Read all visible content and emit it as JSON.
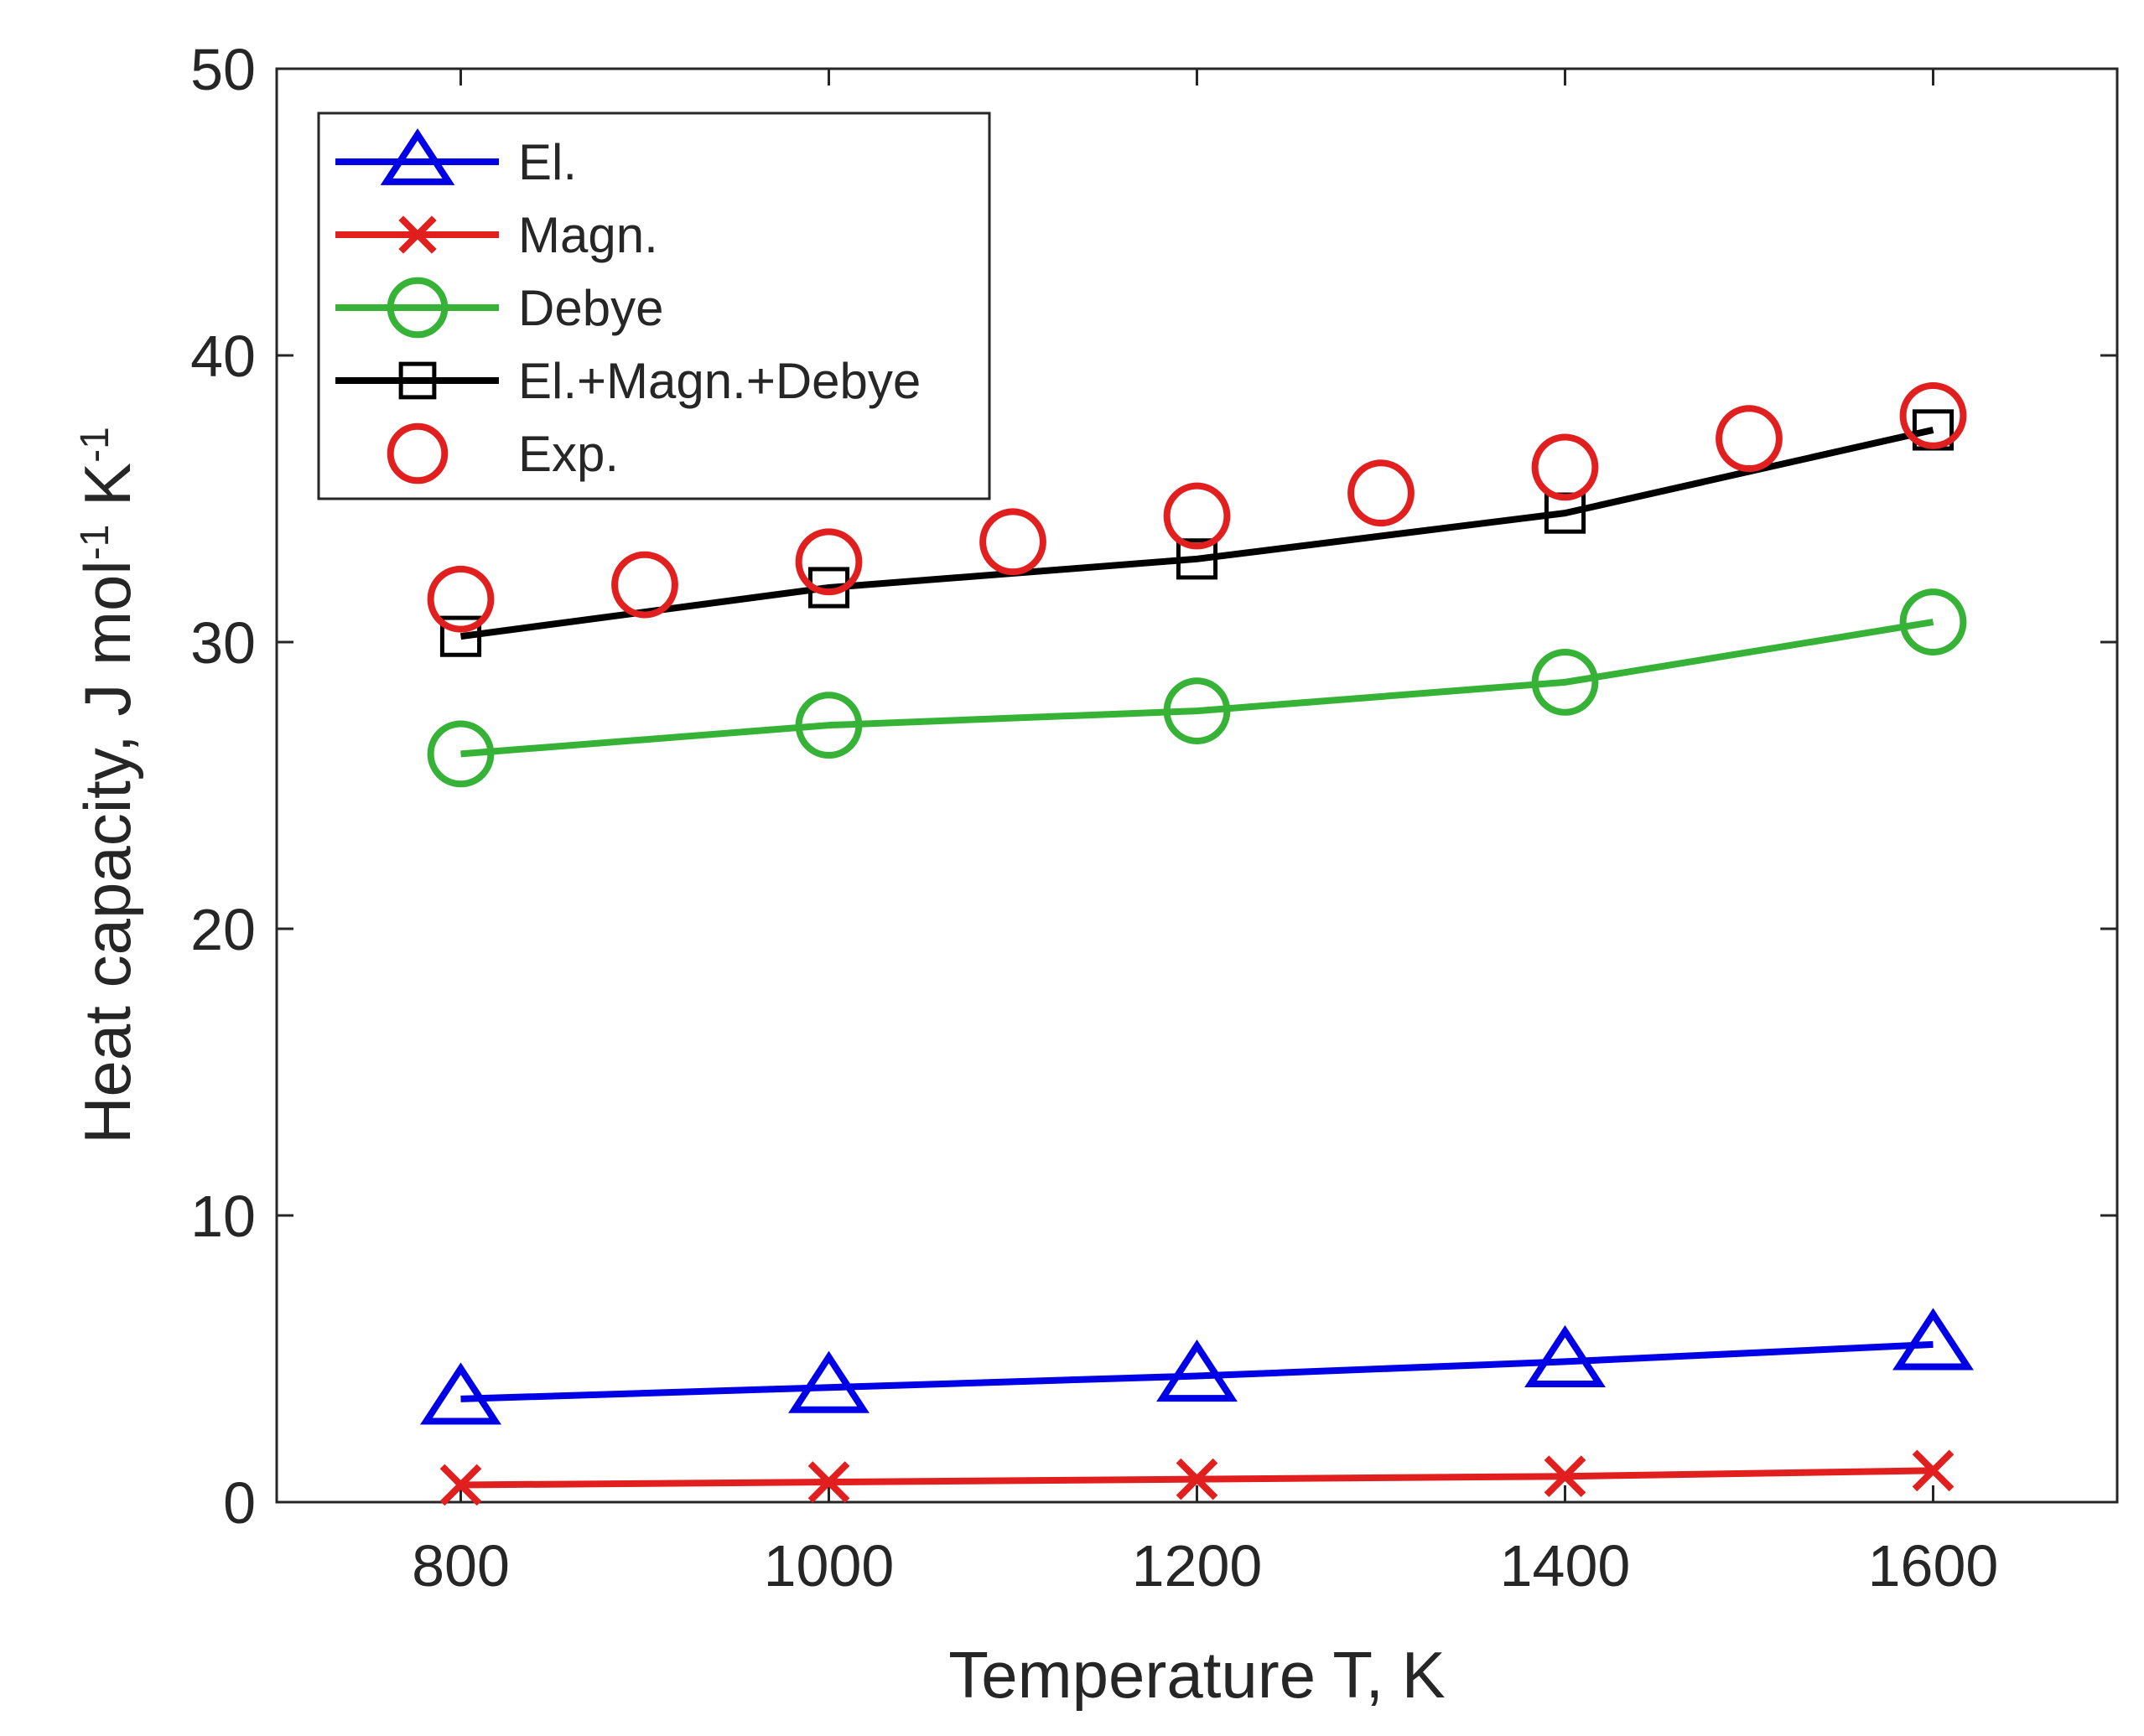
{
  "chart_data": {
    "type": "line",
    "title": "",
    "xlabel": "Temperature T, K",
    "ylabel": {
      "parts": [
        {
          "text": "Heat capacity, J mol",
          "sup": false
        },
        {
          "text": "-1",
          "sup": true
        },
        {
          "text": " K",
          "sup": false
        },
        {
          "text": "-1",
          "sup": true
        }
      ]
    },
    "xlim": [
      700,
      1700
    ],
    "ylim": [
      0,
      50
    ],
    "xticks": [
      800,
      1000,
      1200,
      1400,
      1600
    ],
    "yticks": [
      0,
      10,
      20,
      30,
      40,
      50
    ],
    "grid": false,
    "legend_position": "top-left",
    "series": [
      {
        "name": "El.",
        "color": "#0000e6",
        "marker": "triangle",
        "line": true,
        "x": [
          800,
          1000,
          1200,
          1400,
          1600
        ],
        "y": [
          3.6,
          4.0,
          4.4,
          4.9,
          5.5
        ]
      },
      {
        "name": "Magn.",
        "color": "#e21f1f",
        "marker": "x",
        "line": true,
        "x": [
          800,
          1000,
          1200,
          1400,
          1600
        ],
        "y": [
          0.6,
          0.7,
          0.8,
          0.9,
          1.1
        ]
      },
      {
        "name": "Debye",
        "color": "#36b336",
        "marker": "circle",
        "line": true,
        "x": [
          800,
          1000,
          1200,
          1400,
          1600
        ],
        "y": [
          26.1,
          27.1,
          27.6,
          28.6,
          30.7
        ]
      },
      {
        "name": "El.+Magn.+Debye",
        "color": "#000000",
        "marker": "square",
        "line": true,
        "x": [
          800,
          1000,
          1200,
          1400,
          1600
        ],
        "y": [
          30.2,
          31.9,
          32.9,
          34.5,
          37.4
        ]
      },
      {
        "name": "Exp.",
        "color": "#e21f1f",
        "marker": "circle",
        "line": false,
        "x": [
          800,
          900,
          1000,
          1100,
          1200,
          1300,
          1400,
          1500,
          1600
        ],
        "y": [
          31.5,
          32.0,
          32.8,
          33.5,
          34.4,
          35.2,
          36.1,
          37.1,
          37.9
        ]
      }
    ]
  }
}
